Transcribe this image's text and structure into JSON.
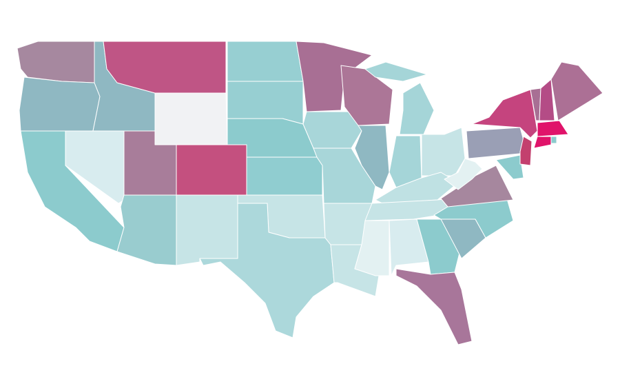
{
  "map": {
    "background": "#ffffff",
    "border_color": "#ffffff",
    "regions": [
      {
        "color": "#a6889f"
      },
      {
        "color": "#8fb8c2"
      },
      {
        "color": "#8ccbcd"
      },
      {
        "color": "#d8ecef"
      },
      {
        "color": "#8fb8c2"
      },
      {
        "color": "#bf5585"
      },
      {
        "color": "#f1f2f4"
      },
      {
        "color": "#a87d9a"
      },
      {
        "color": "#c4507f"
      },
      {
        "color": "#99cccf"
      },
      {
        "color": "#c6e4e6"
      },
      {
        "color": "#97cfd2"
      },
      {
        "color": "#97cfd2"
      },
      {
        "color": "#8ccbcd"
      },
      {
        "color": "#90cdd0"
      },
      {
        "color": "#c6e4e6"
      },
      {
        "color": "#acd8db"
      },
      {
        "color": "#a86f94"
      },
      {
        "color": "#a8d6d9"
      },
      {
        "color": "#a8d6d9"
      },
      {
        "color": "#c6e4e6"
      },
      {
        "color": "#c6e4e6"
      },
      {
        "color": "#ac7697"
      },
      {
        "color": "#8fb8c2"
      },
      {
        "color": "#a5d5d8"
      },
      {
        "color": "#a5d5d8"
      },
      {
        "color": "#c6e4e6"
      },
      {
        "color": "#bfe1e3"
      },
      {
        "color": "#c6e4e6"
      },
      {
        "color": "#e3f1f2"
      },
      {
        "color": "#d8ecef"
      },
      {
        "color": "#8ccbcd"
      },
      {
        "color": "#a8769a"
      },
      {
        "color": "#8fb8c2"
      },
      {
        "color": "#8ccbcd"
      },
      {
        "color": "#a6879e"
      },
      {
        "color": "#e3f1f2"
      },
      {
        "color": "#9a9fb5"
      },
      {
        "color": "#c5447e"
      },
      {
        "color": "#8ccbcd"
      },
      {
        "color": "#c3406e"
      },
      {
        "color": "#a86f94"
      },
      {
        "color": "#b44c86"
      },
      {
        "color": "#ac7095"
      },
      {
        "color": "#e0136a"
      },
      {
        "color": "#e0136a"
      },
      {
        "color": "#8ccbcd"
      }
    ]
  }
}
